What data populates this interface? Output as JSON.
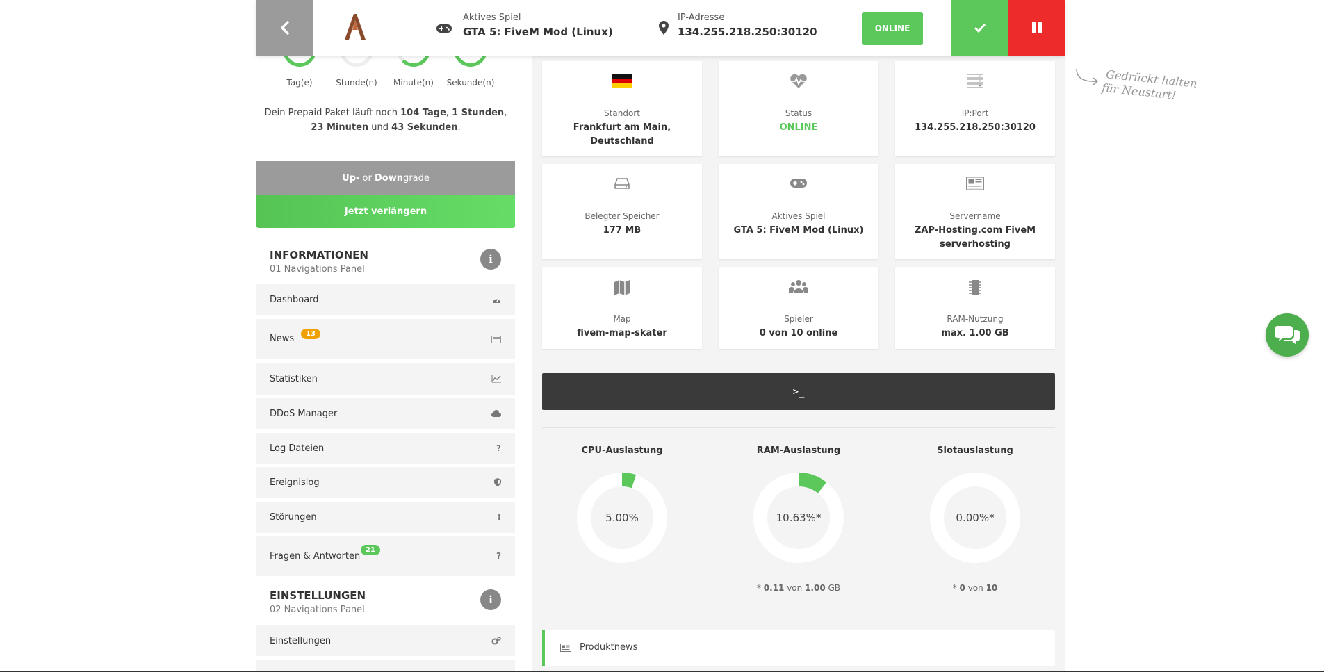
{
  "header": {
    "game_label": "Aktives Spiel",
    "game_value": "GTA 5: FiveM Mod (Linux)",
    "ip_label": "IP-Adresse",
    "ip_value": "134.255.218.250:30120",
    "online_label": "ONLINE",
    "icons": [
      "chevron-left-icon",
      "logo",
      "gamepad-icon",
      "map-marker-icon",
      "check-icon",
      "pause-icon"
    ]
  },
  "hint": {
    "line1": "Gedrückt halten",
    "line2": "für Neustart!"
  },
  "timer": {
    "units": [
      "Tag(e)",
      "Stunde(n)",
      "Minute(n)",
      "Sekunde(n)"
    ],
    "accent": "#5cc85c"
  },
  "prepaid": {
    "prefix": "Dein Prepaid Paket läuft noch ",
    "days": "104 Tage",
    "sep1": ", ",
    "hours": "1 Stunden",
    "sep2": ",",
    "minutes": "23 Minuten",
    "and": " und ",
    "seconds": "43 Sekunden",
    "end": "."
  },
  "buttons": {
    "upgrade_up": "Up-",
    "upgrade_or": " or ",
    "upgrade_down": "Down",
    "upgrade_grade": "grade",
    "extend": "Jetzt verlängern"
  },
  "sections": {
    "info_title": "INFORMATIONEN",
    "info_sub": "01 Navigations Panel",
    "settings_title": "EINSTELLUNGEN",
    "settings_sub": "02 Navigations Panel",
    "info_icon": "i"
  },
  "nav": {
    "dashboard": "Dashboard",
    "news": "News",
    "news_badge": "13",
    "stats": "Statistiken",
    "ddos": "DDoS Manager",
    "logs": "Log Dateien",
    "events": "Ereignislog",
    "faults": "Störungen",
    "faq": "Fragen & Antworten",
    "faq_badge": "21",
    "settings": "Einstellungen",
    "q": "?",
    "excl": "!"
  },
  "cards": {
    "location_label": "Standort",
    "location_value": "Frankfurt am Main, Deutschland",
    "status_label": "Status",
    "status_value": "ONLINE",
    "ipport_label": "IP:Port",
    "ipport_value": "134.255.218.250:30120",
    "storage_label": "Belegter Speicher",
    "storage_value": "177 MB",
    "game_label": "Aktives Spiel",
    "game_value": "GTA 5: FiveM Mod (Linux)",
    "servername_label": "Servername",
    "servername_value": "ZAP-Hosting.com FiveM serverhosting",
    "map_label": "Map",
    "map_value": "fivem-map-skater",
    "players_label": "Spieler",
    "players_value": "0 von 10 online",
    "ram_label": "RAM-Nutzung",
    "ram_value": "max. 1.00 GB"
  },
  "console": {
    "label": ">_"
  },
  "gauges": {
    "cpu_title": "CPU-Auslastung",
    "cpu_value": "5.00%",
    "cpu_fraction": 0.05,
    "ram_title": "RAM-Auslastung",
    "ram_value": "10.63%*",
    "ram_fraction": 0.1063,
    "ram_foot_pre": "* ",
    "ram_foot_used": "0.11",
    "ram_foot_mid": " von ",
    "ram_foot_total": "1.00",
    "ram_foot_unit": " GB",
    "slot_title": "Slotauslastung",
    "slot_value": "0.00%*",
    "slot_fraction": 0,
    "slot_foot_pre": "* ",
    "slot_foot_used": "0",
    "slot_foot_mid": " von ",
    "slot_foot_total": "10"
  },
  "news_bar": {
    "label": "Produktnews"
  },
  "colors": {
    "green": "#5cc85c",
    "red": "#ee2b2b",
    "gray": "#9b9b9b",
    "orange": "#f0a000"
  }
}
